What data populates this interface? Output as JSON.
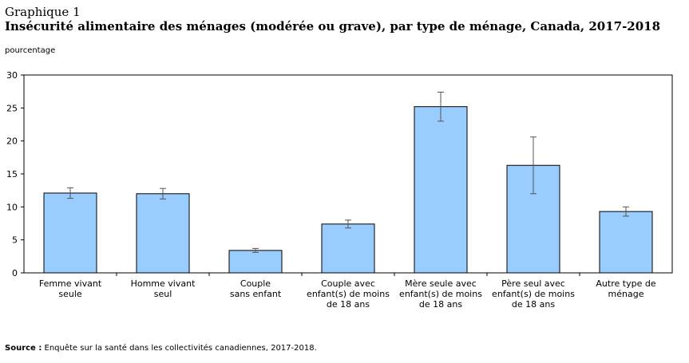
{
  "header": {
    "chart_number": "Graphique 1",
    "title": "Insécurité alimentaire des ménages (modérée ou grave), par type de ménage, Canada, 2017-2018"
  },
  "unit_label": "pourcentage",
  "source": {
    "label": "Source :",
    "text": "Enquête sur la santé dans les collectivités canadiennes, 2017-2018."
  },
  "colors": {
    "bar_fill": "#99ccff",
    "bar_stroke": "#000000",
    "error_bar": "#555555"
  },
  "chart_data": {
    "type": "bar",
    "title": "Insécurité alimentaire des ménages (modérée ou grave), par type de ménage, Canada, 2017-2018",
    "ylabel": "pourcentage",
    "xlabel": "",
    "ylim": [
      0,
      30
    ],
    "yticks": [
      0,
      5,
      10,
      15,
      20,
      25,
      30
    ],
    "grid": false,
    "categories": [
      [
        "Femme vivant",
        "seule"
      ],
      [
        "Homme vivant",
        "seul"
      ],
      [
        "Couple",
        "sans enfant"
      ],
      [
        "Couple avec",
        "enfant(s) de moins",
        "de 18 ans"
      ],
      [
        "Mère seule avec",
        "enfant(s) de moins",
        "de 18 ans"
      ],
      [
        "Père seul avec",
        "enfant(s) de moins",
        "de 18 ans"
      ],
      [
        "Autre type de",
        "ménage"
      ]
    ],
    "values": [
      12.1,
      12.0,
      3.4,
      7.4,
      25.2,
      16.3,
      9.3
    ],
    "error_low": [
      11.3,
      11.2,
      3.1,
      6.8,
      23.0,
      12.0,
      8.6
    ],
    "error_high": [
      12.9,
      12.8,
      3.7,
      8.0,
      27.4,
      20.6,
      10.0
    ]
  }
}
